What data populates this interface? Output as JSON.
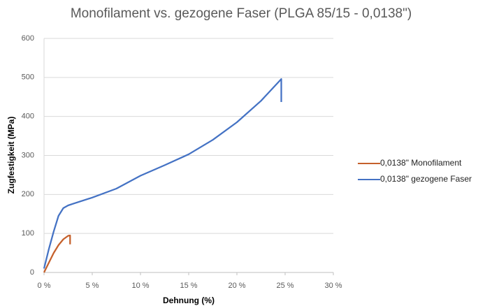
{
  "chart_data": {
    "type": "line",
    "title": "Monofilament vs. gezogene Faser (PLGA 85/15 - 0,0138\")",
    "xlabel": "Dehnung (%)",
    "ylabel": "Zugfestigkeit (MPa)",
    "xlim": [
      0,
      30
    ],
    "xticks": [
      {
        "value": 0,
        "label": "0 %"
      },
      {
        "value": 5,
        "label": "5 %"
      },
      {
        "value": 10,
        "label": "10 %"
      },
      {
        "value": 15,
        "label": "15 %"
      },
      {
        "value": 20,
        "label": "20 %"
      },
      {
        "value": 25,
        "label": "25 %"
      },
      {
        "value": 30,
        "label": "30 %"
      }
    ],
    "ylim": [
      0,
      600
    ],
    "yticks": [
      0,
      100,
      200,
      300,
      400,
      500,
      600
    ],
    "grid": true,
    "legend": "right",
    "series": [
      {
        "name": "0,0138\" Monofilament",
        "color": "#c5602b",
        "x": [
          0,
          0.5,
          1,
          1.5,
          2,
          2.5,
          2.7,
          2.7
        ],
        "values": [
          0,
          25,
          50,
          70,
          85,
          94,
          95,
          72
        ]
      },
      {
        "name": "0,0138\" gezogene Faser",
        "color": "#4472c4",
        "x": [
          0,
          0.5,
          1,
          1.5,
          2,
          2.5,
          3,
          5,
          7.5,
          10,
          12.5,
          15,
          17.5,
          20,
          22.5,
          24.6,
          24.6
        ],
        "values": [
          10,
          60,
          105,
          145,
          165,
          172,
          176,
          192,
          215,
          248,
          275,
          303,
          340,
          385,
          440,
          496,
          437
        ]
      }
    ]
  }
}
